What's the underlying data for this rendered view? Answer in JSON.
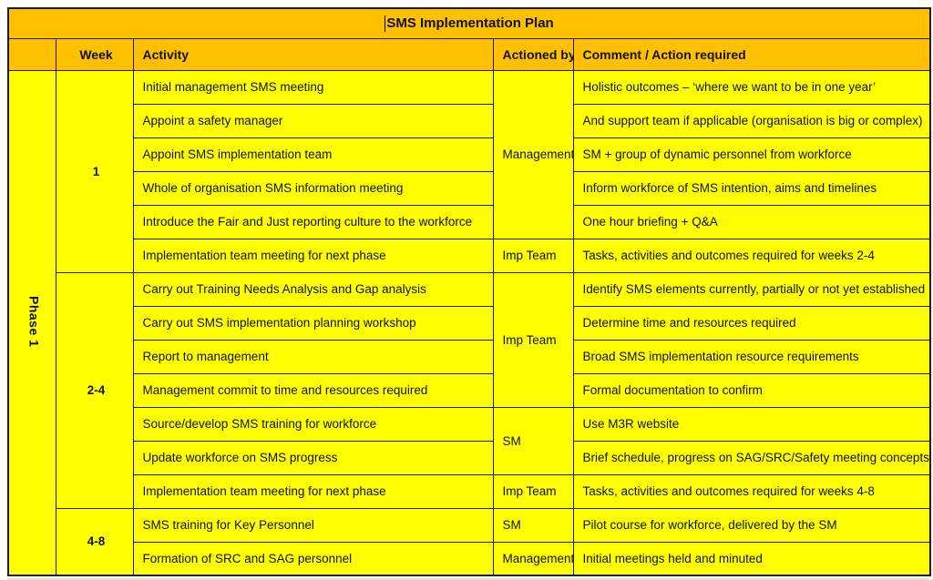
{
  "title": "SMS Implementation Plan",
  "colors": {
    "header_bg": "#FFC000",
    "cell_bg": "#FFFF00",
    "border": "#1c1c1c",
    "text": "#111111"
  },
  "phase": {
    "label": "Phase 1"
  },
  "columns": {
    "week": "Week",
    "activity": "Activity",
    "actioned_by": "Actioned by",
    "comment": "Comment / Action required"
  },
  "week_groups": [
    {
      "label": "1"
    },
    {
      "label": "2-4"
    },
    {
      "label": "4-8"
    }
  ],
  "actioned_groups": [
    {
      "label": "Management"
    },
    {
      "label": "Imp Team"
    },
    {
      "label": "Imp Team"
    },
    {
      "label": "SM"
    },
    {
      "label": "Imp Team"
    },
    {
      "label": "SM"
    },
    {
      "label": "Management"
    }
  ],
  "rows": [
    {
      "activity": "Initial management SMS meeting",
      "comment": "Holistic outcomes – ‘where we want to be in one year’"
    },
    {
      "activity": "Appoint a safety manager",
      "comment": "And support team if applicable (organisation is big or complex)"
    },
    {
      "activity": "Appoint SMS implementation team",
      "comment": "SM + group of dynamic personnel from workforce"
    },
    {
      "activity": "Whole of organisation SMS information meeting",
      "comment": "Inform workforce of SMS intention, aims and timelines"
    },
    {
      "activity": "Introduce the Fair and Just reporting culture to the workforce",
      "comment": "One hour briefing + Q&A"
    },
    {
      "activity": "Implementation team meeting for next phase",
      "comment": "Tasks, activities and outcomes required for weeks 2-4"
    },
    {
      "activity": "Carry out Training Needs Analysis and Gap analysis",
      "comment": "Identify SMS elements currently, partially or not yet established"
    },
    {
      "activity": "Carry out SMS implementation planning workshop",
      "comment": "Determine time and resources required"
    },
    {
      "activity": "Report to management",
      "comment": "Broad SMS implementation resource requirements"
    },
    {
      "activity": "Management commit to time and resources required",
      "comment": "Formal documentation to confirm"
    },
    {
      "activity": "Source/develop SMS training for workforce",
      "comment": "Use M3R website"
    },
    {
      "activity": "Update workforce on SMS progress",
      "comment": "Brief schedule, progress on SAG/SRC/Safety meeting concepts"
    },
    {
      "activity": "Implementation team meeting for next phase",
      "comment": "Tasks, activities and outcomes required for weeks 4-8"
    },
    {
      "activity": "SMS training for Key Personnel",
      "comment": "Pilot course for workforce, delivered by the SM"
    },
    {
      "activity": "Formation of SRC and SAG personnel",
      "comment": "Initial meetings held and minuted"
    }
  ]
}
